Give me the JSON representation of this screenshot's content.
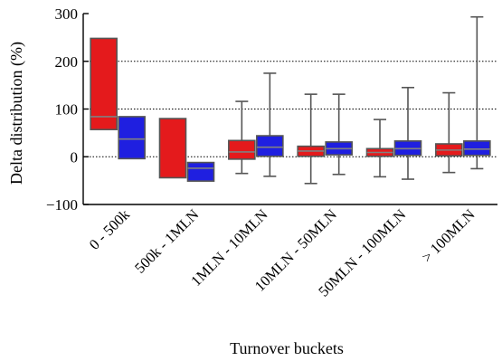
{
  "chart_data": {
    "type": "boxplot",
    "title": "",
    "xlabel": "Turnover buckets",
    "ylabel": "Delta distribution (%)",
    "ylim": [
      -100,
      300
    ],
    "yticks": [
      -100,
      0,
      100,
      200,
      300
    ],
    "ytick_labels": [
      "−100",
      "0",
      "100",
      "200",
      "300"
    ],
    "grid": "dotted horizontal lines at 0, 100 and 200",
    "legend": "none",
    "series_colors": [
      "#e41a1c",
      "#1f1fe0"
    ],
    "median_color": "#808080",
    "categories": [
      "0 - 500k",
      "500k - 1MLN",
      "1MLN - 10MLN",
      "10MLN - 50MLN",
      "50MLN - 100MLN",
      "> 100MLN"
    ],
    "series": [
      {
        "color": "#e41a1c",
        "boxes": [
          {
            "q1": 57,
            "median": 84,
            "q3": 248,
            "whisker_low": null,
            "whisker_high": null
          },
          {
            "q1": -44,
            "median": null,
            "q3": 80,
            "whisker_low": null,
            "whisker_high": null
          },
          {
            "q1": -5,
            "median": 10,
            "q3": 34,
            "whisker_low": -35,
            "whisker_high": 116
          },
          {
            "q1": 1,
            "median": 12,
            "q3": 22,
            "whisker_low": -56,
            "whisker_high": 131
          },
          {
            "q1": 1,
            "median": 9,
            "q3": 17,
            "whisker_low": -42,
            "whisker_high": 78
          },
          {
            "q1": 2,
            "median": 14,
            "q3": 27,
            "whisker_low": -33,
            "whisker_high": 134
          }
        ]
      },
      {
        "color": "#1f1fe0",
        "boxes": [
          {
            "q1": -4,
            "median": 37,
            "q3": 84,
            "whisker_low": null,
            "whisker_high": null
          },
          {
            "q1": -51,
            "median": -24,
            "q3": -12,
            "whisker_low": null,
            "whisker_high": null
          },
          {
            "q1": 1,
            "median": 20,
            "q3": 44,
            "whisker_low": -41,
            "whisker_high": 175
          },
          {
            "q1": 4,
            "median": 17,
            "q3": 31,
            "whisker_low": -37,
            "whisker_high": 131
          },
          {
            "q1": 3,
            "median": 17,
            "q3": 33,
            "whisker_low": -47,
            "whisker_high": 145
          },
          {
            "q1": 3,
            "median": 16,
            "q3": 33,
            "whisker_low": -25,
            "whisker_high": 293
          }
        ]
      }
    ]
  }
}
